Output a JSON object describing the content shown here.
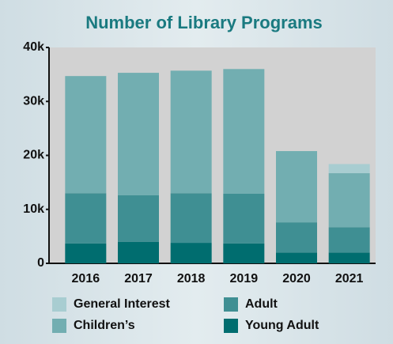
{
  "chart_data": {
    "type": "stacked_bar",
    "title": "Number of Library Programs",
    "categories": [
      "2016",
      "2017",
      "2018",
      "2019",
      "2020",
      "2021"
    ],
    "series": [
      {
        "name": "Young Adult",
        "color": "#006d6f",
        "values": [
          3700,
          4000,
          3800,
          3700,
          2000,
          2000
        ]
      },
      {
        "name": "Adult",
        "color": "#3f8f93",
        "values": [
          9300,
          8600,
          9200,
          9200,
          5600,
          4700
        ]
      },
      {
        "name": "Children’s",
        "color": "#72aeb1",
        "values": [
          21700,
          22700,
          22700,
          23100,
          13200,
          10000
        ]
      },
      {
        "name": "General Interest",
        "color": "#a8cdd1",
        "values": [
          0,
          0,
          0,
          0,
          0,
          1700
        ]
      }
    ],
    "ylim": [
      0,
      40000
    ],
    "yticks": [
      0,
      {
        "value": 10000,
        "label": "10k"
      },
      {
        "value": 20000,
        "label": "20k"
      },
      {
        "value": 30000,
        "label": "30k"
      },
      {
        "value": 40000,
        "label": "40k"
      }
    ]
  }
}
